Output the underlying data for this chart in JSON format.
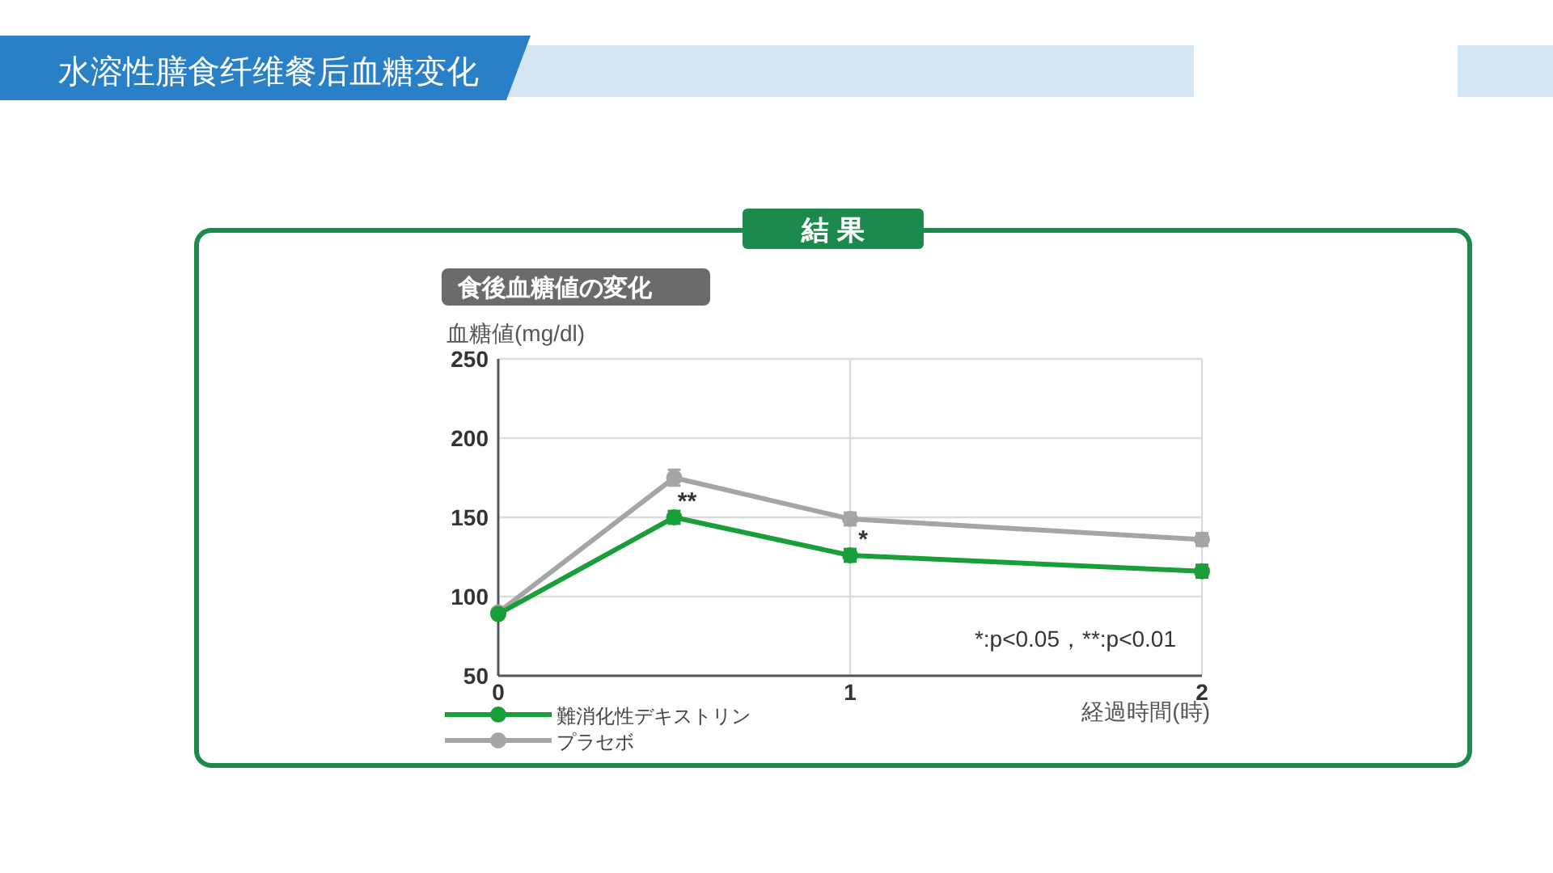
{
  "chart_data": {
    "type": "line",
    "title": "水溶性膳食纤维餐后血糖变化",
    "subtitle": "食後血糖値の変化",
    "ylabel": "血糖値(mg/dl)",
    "xlabel": "経過時間(時)",
    "x": [
      0,
      0.5,
      1,
      2
    ],
    "series": [
      {
        "name": "難消化性デキストリン",
        "color": "#1a9e3a",
        "values": [
          89,
          150,
          126,
          116
        ],
        "errors": [
          null,
          4,
          4,
          4
        ]
      },
      {
        "name": "プラセボ",
        "color": "#a5a5a5",
        "values": [
          90,
          175,
          149,
          136
        ],
        "errors": [
          null,
          5,
          4,
          4
        ]
      }
    ],
    "xlim": [
      0,
      2
    ],
    "xticks": [
      0,
      1,
      2
    ],
    "ylim": [
      50,
      250
    ],
    "yticks": [
      50,
      100,
      150,
      200,
      250
    ],
    "grid": true,
    "legend": "bottom left",
    "marker": "circle",
    "line_style": "solid",
    "annotations": [
      "結 果",
      {
        "text": "**",
        "x": 0.5,
        "y": 150
      },
      {
        "text": "*",
        "x": 1,
        "y": 126
      },
      "*:p<0.05，**:p<0.01"
    ]
  }
}
